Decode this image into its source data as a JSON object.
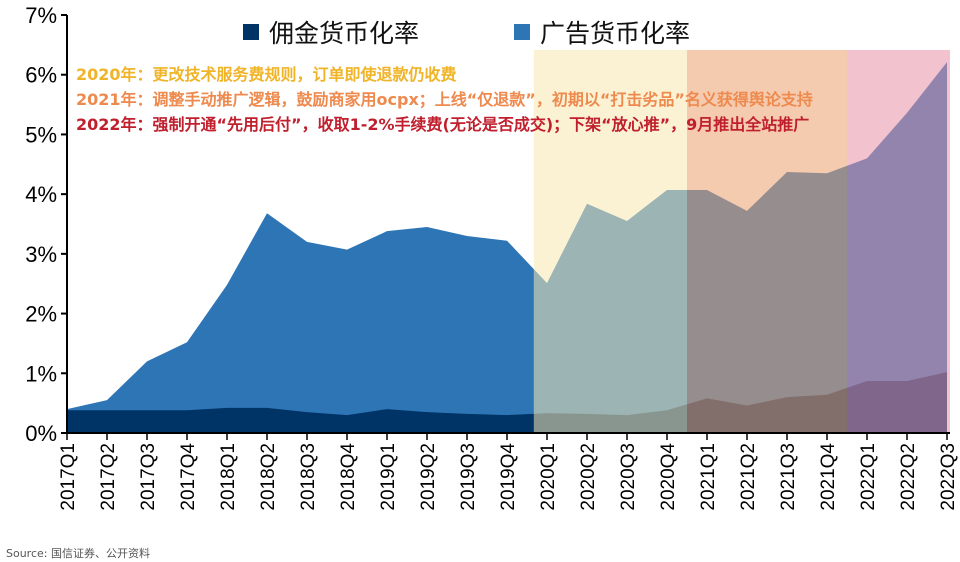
{
  "chart_data": {
    "type": "area",
    "title": "",
    "xlabel": "",
    "ylabel": "",
    "ylim": [
      0,
      7
    ],
    "yticks": [
      "0%",
      "1%",
      "2%",
      "3%",
      "4%",
      "5%",
      "6%",
      "7%"
    ],
    "categories": [
      "2017Q1",
      "2017Q2",
      "2017Q3",
      "2017Q4",
      "2018Q1",
      "2018Q2",
      "2018Q3",
      "2018Q4",
      "2019Q1",
      "2019Q2",
      "2019Q3",
      "2019Q4",
      "2020Q1",
      "2020Q2",
      "2020Q3",
      "2020Q4",
      "2021Q1",
      "2021Q2",
      "2021Q3",
      "2021Q4",
      "2022Q1",
      "2022Q2",
      "2022Q3"
    ],
    "legend_position": "top",
    "series": [
      {
        "name": "广告货币化率",
        "color": "#2e75b6",
        "values": [
          0.4,
          0.55,
          1.2,
          1.52,
          2.48,
          3.68,
          3.2,
          3.07,
          3.38,
          3.45,
          3.3,
          3.22,
          2.51,
          3.84,
          3.55,
          4.07,
          4.07,
          3.72,
          4.37,
          4.35,
          4.6,
          5.36,
          6.21
        ]
      },
      {
        "name": "佣金货币化率",
        "color": "#003366",
        "values": [
          0.38,
          0.38,
          0.38,
          0.38,
          0.42,
          0.42,
          0.35,
          0.3,
          0.4,
          0.35,
          0.32,
          0.3,
          0.33,
          0.32,
          0.3,
          0.38,
          0.58,
          0.46,
          0.6,
          0.64,
          0.87,
          0.87,
          1.02
        ]
      }
    ],
    "annotations": [
      {
        "text": "2020年：更改技术服务费规则，订单即使退款仍收费",
        "color": "#f0b429",
        "band_color": "#f8e8b0"
      },
      {
        "text": "2021年：调整手动推广逻辑，鼓励商家用ocpx；上线“仅退款”，初期以“打击劣品”名义获得舆论支持",
        "color": "#ee8a4e",
        "band_color": "#eda070"
      },
      {
        "text": "2022年：强制开通“先用后付”，收取1-2%手续费(无论是否成交)；下架“放心推”，9月推出全站推广",
        "color": "#c0202e",
        "band_color": "#e890a8"
      }
    ]
  },
  "source": "Source:   国信证券、公开资料"
}
